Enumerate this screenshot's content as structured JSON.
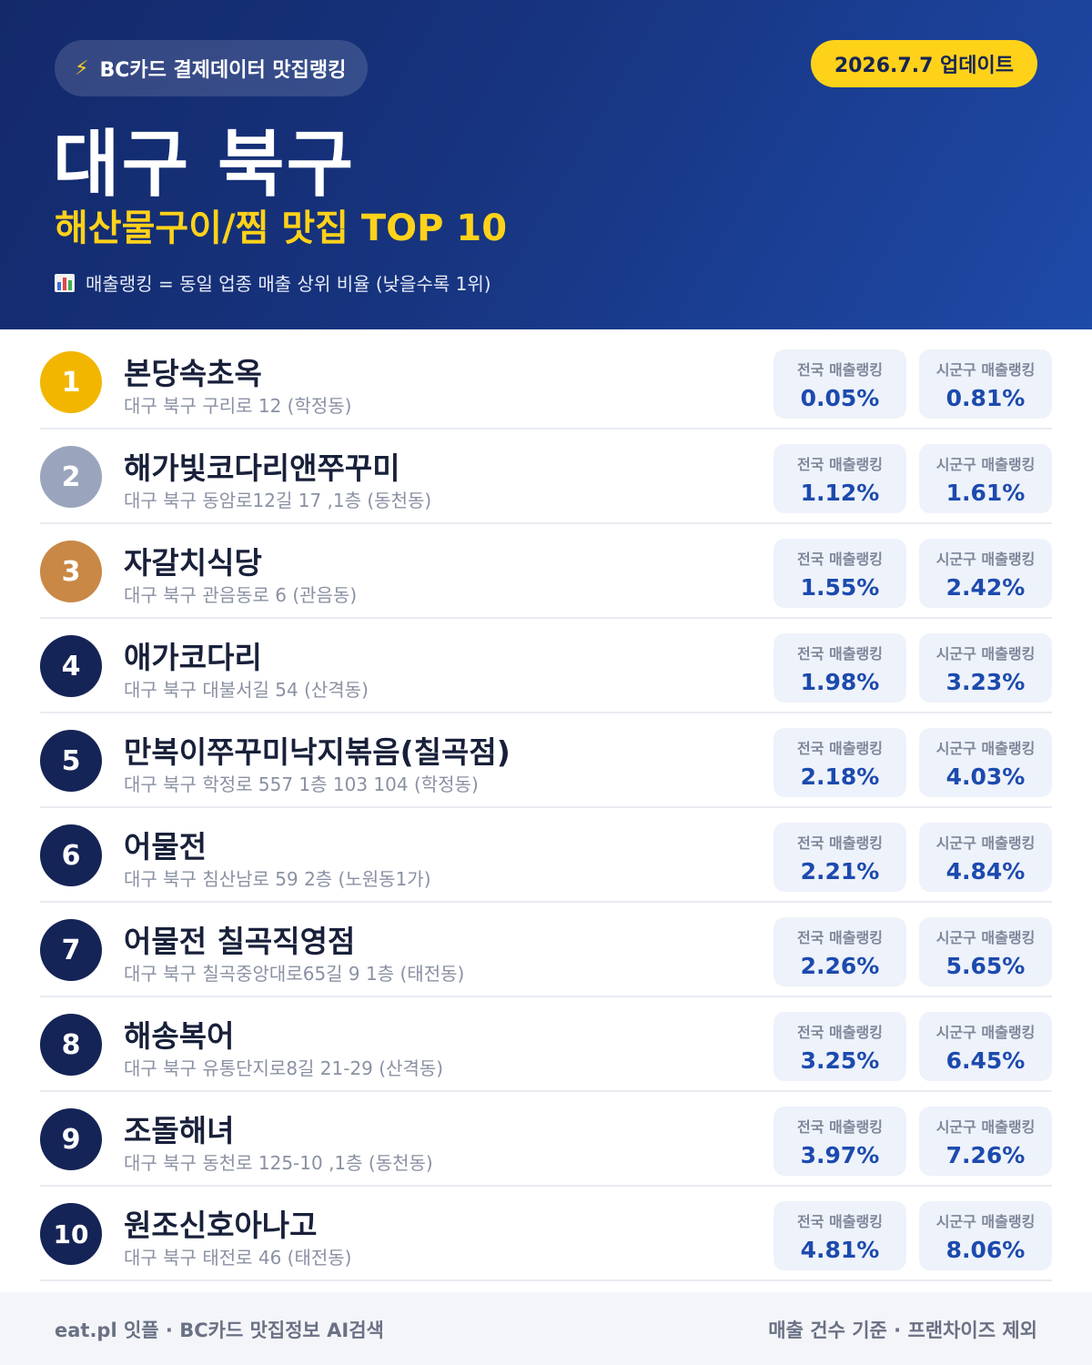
{
  "header": {
    "badge_label": "BC카드 결제데이터 맛집랭킹",
    "update_label": "2026.7.7 업데이트",
    "region": "대구 북구",
    "category": "해산물구이/찜 맛집 TOP 10",
    "legend": "매출랭킹 = 동일 업종 매출 상위 비율 (낮을수록 1위)",
    "bolt_icon": "⚡"
  },
  "colors": {
    "gold": "#f2b600",
    "silver": "#9aa5bd",
    "bronze": "#c98845",
    "navy": "#152456",
    "accent_yellow": "#ffd21a",
    "value_blue": "#1c4aae"
  },
  "stat_labels": {
    "national": "전국 매출랭킹",
    "local": "시군구 매출랭킹"
  },
  "restaurants": [
    {
      "rank": "1",
      "name": "본당속초옥",
      "address": "대구 북구 구리로 12 (학정동)",
      "national": "0.05%",
      "local": "0.81%",
      "medal": "gold"
    },
    {
      "rank": "2",
      "name": "해가빛코다리앤쭈꾸미",
      "address": "대구 북구 동암로12길 17 ,1층 (동천동)",
      "national": "1.12%",
      "local": "1.61%",
      "medal": "silver"
    },
    {
      "rank": "3",
      "name": "자갈치식당",
      "address": "대구 북구 관음동로 6 (관음동)",
      "national": "1.55%",
      "local": "2.42%",
      "medal": "bronze"
    },
    {
      "rank": "4",
      "name": "애가코다리",
      "address": "대구 북구 대불서길 54 (산격동)",
      "national": "1.98%",
      "local": "3.23%",
      "medal": "navy"
    },
    {
      "rank": "5",
      "name": "만복이쭈꾸미낙지볶음(칠곡점)",
      "address": "대구 북구 학정로 557 1층 103 104 (학정동)",
      "national": "2.18%",
      "local": "4.03%",
      "medal": "navy"
    },
    {
      "rank": "6",
      "name": "어물전",
      "address": "대구 북구 침산남로 59 2층 (노원동1가)",
      "national": "2.21%",
      "local": "4.84%",
      "medal": "navy"
    },
    {
      "rank": "7",
      "name": "어물전 칠곡직영점",
      "address": "대구 북구 칠곡중앙대로65길 9 1층 (태전동)",
      "national": "2.26%",
      "local": "5.65%",
      "medal": "navy"
    },
    {
      "rank": "8",
      "name": "해송복어",
      "address": "대구 북구 유통단지로8길 21-29 (산격동)",
      "national": "3.25%",
      "local": "6.45%",
      "medal": "navy"
    },
    {
      "rank": "9",
      "name": "조돌해녀",
      "address": "대구 북구 동천로 125-10 ,1층 (동천동)",
      "national": "3.97%",
      "local": "7.26%",
      "medal": "navy"
    },
    {
      "rank": "10",
      "name": "원조신호아나고",
      "address": "대구 북구 태전로 46 (태전동)",
      "national": "4.81%",
      "local": "8.06%",
      "medal": "navy"
    }
  ],
  "footer": {
    "left": "eat.pl 잇플 · BC카드 맛집정보 AI검색",
    "right": "매출 건수 기준 · 프랜차이즈 제외"
  }
}
